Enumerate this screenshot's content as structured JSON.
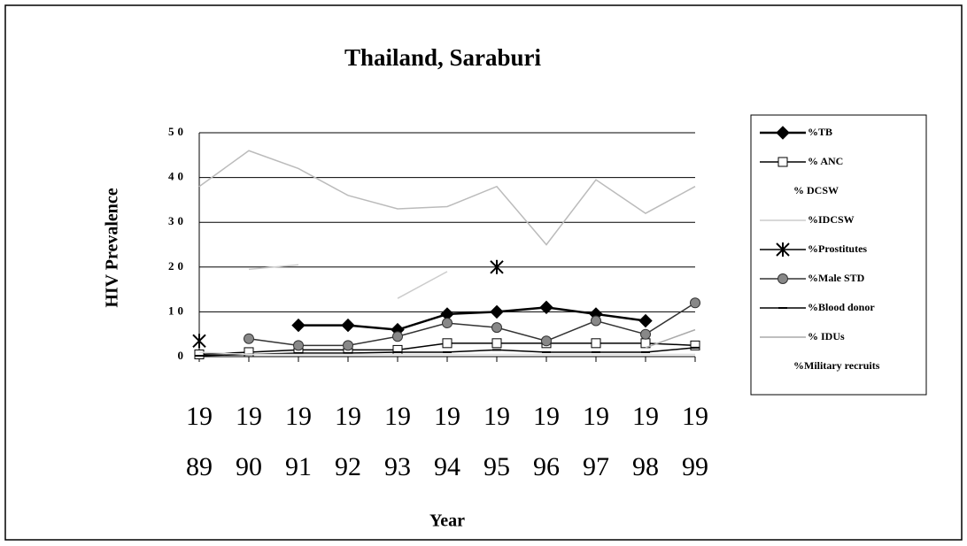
{
  "chart_data": {
    "type": "line",
    "title": "Thailand, Saraburi",
    "y_label": "HIV Prevalence",
    "x_label": "Year",
    "categories": [
      "1989",
      "1990",
      "1991",
      "1992",
      "1993",
      "1994",
      "1995",
      "1996",
      "1997",
      "1998",
      "1999"
    ],
    "ylim": [
      0,
      50
    ],
    "yticks": [
      0,
      10,
      20,
      30,
      40,
      50
    ],
    "grid": true,
    "series": [
      {
        "name": "%TB",
        "color": "#000000",
        "marker": "diamond",
        "values": [
          null,
          null,
          7,
          7,
          6,
          9.5,
          10,
          11,
          9.5,
          8,
          null
        ]
      },
      {
        "name": "% ANC",
        "color": "#000000",
        "marker": "square",
        "values": [
          0.5,
          1,
          1.5,
          1.5,
          1.5,
          3,
          3,
          3,
          3,
          3,
          2.5
        ]
      },
      {
        "name": "% DCSW",
        "color": "#bbbbbb",
        "marker": "none",
        "values": [
          38,
          46,
          42,
          36,
          33,
          33.5,
          38,
          25,
          39.5,
          32,
          38
        ]
      },
      {
        "name": "%IDCSW",
        "color": "#cccccc",
        "marker": "none",
        "values": [
          null,
          19.5,
          20.5,
          null,
          13,
          19,
          null,
          null,
          null,
          null,
          null
        ]
      },
      {
        "name": "%Prostitutes",
        "color": "#000000",
        "marker": "star",
        "values": [
          3.5,
          null,
          null,
          null,
          null,
          null,
          20,
          null,
          null,
          null,
          null
        ]
      },
      {
        "name": "%Male STD",
        "color": "#333333",
        "marker": "circle",
        "values": [
          null,
          4,
          2.5,
          2.5,
          4.5,
          7.5,
          6.5,
          3.5,
          8,
          5,
          12
        ]
      },
      {
        "name": "%Blood donor",
        "color": "#000000",
        "marker": "dash",
        "values": [
          0.2,
          0.5,
          0.8,
          0.8,
          1,
          1,
          1.5,
          1,
          1,
          1,
          2
        ]
      },
      {
        "name": "% IDUs",
        "color": "#aaaaaa",
        "marker": "none",
        "values": [
          null,
          null,
          null,
          null,
          null,
          null,
          null,
          null,
          null,
          2,
          6
        ]
      },
      {
        "name": "%Military recruits",
        "color": "#dddddd",
        "marker": "none",
        "values": [
          1,
          0.5,
          0.5,
          0.5,
          0.5,
          0.5,
          0.5,
          0.5,
          0.5,
          0.5,
          0.5
        ]
      }
    ]
  }
}
